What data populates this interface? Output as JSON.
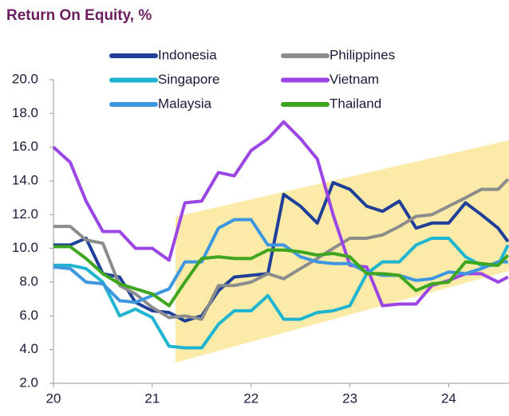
{
  "chart_data": {
    "type": "line",
    "title": "Return On Equity, %",
    "x": [
      20.0,
      20.17,
      20.33,
      20.5,
      20.67,
      20.83,
      21.0,
      21.17,
      21.33,
      21.5,
      21.67,
      21.83,
      22.0,
      22.17,
      22.33,
      22.5,
      22.67,
      22.83,
      23.0,
      23.17,
      23.33,
      23.5,
      23.67,
      23.83,
      24.0,
      24.17,
      24.33,
      24.5,
      24.6
    ],
    "series": [
      {
        "name": "Indonesia",
        "color": "#1f3f99",
        "values": [
          10.2,
          10.2,
          10.6,
          8.5,
          8.3,
          6.8,
          6.3,
          6.2,
          5.7,
          6.0,
          7.5,
          8.3,
          8.4,
          8.5,
          13.2,
          12.5,
          11.5,
          13.9,
          13.5,
          12.5,
          12.2,
          12.8,
          11.2,
          11.5,
          11.5,
          12.7,
          12.0,
          11.2,
          10.4
        ]
      },
      {
        "name": "Philippines",
        "color": "#8c8c8c",
        "values": [
          11.3,
          11.3,
          10.5,
          10.3,
          7.8,
          7.3,
          6.5,
          5.9,
          6.0,
          5.8,
          7.8,
          7.8,
          8.0,
          8.5,
          8.2,
          8.8,
          9.4,
          10.0,
          10.6,
          10.6,
          10.8,
          11.3,
          11.9,
          12.0,
          12.5,
          13.0,
          13.5,
          13.5,
          14.1
        ]
      },
      {
        "name": "Singapore",
        "color": "#1fb5d0",
        "values": [
          9.0,
          9.0,
          8.8,
          8.0,
          6.0,
          6.4,
          5.9,
          4.2,
          4.1,
          4.1,
          5.5,
          6.3,
          6.3,
          7.2,
          5.8,
          5.8,
          6.2,
          6.3,
          6.6,
          8.5,
          9.2,
          9.2,
          10.2,
          10.6,
          10.6,
          9.5,
          9.0,
          9.0,
          10.2
        ]
      },
      {
        "name": "Vietnam",
        "color": "#9b45e4",
        "values": [
          16.0,
          15.1,
          12.8,
          11.0,
          11.0,
          10.0,
          10.0,
          9.3,
          12.7,
          12.8,
          14.5,
          14.3,
          15.8,
          16.5,
          17.5,
          16.5,
          15.3,
          12.0,
          9.0,
          8.9,
          6.6,
          6.7,
          6.7,
          7.8,
          8.1,
          8.5,
          8.5,
          8.0,
          8.3
        ]
      },
      {
        "name": "Malaysia",
        "color": "#3d97e0",
        "values": [
          8.9,
          8.8,
          8.0,
          7.9,
          6.9,
          6.8,
          7.2,
          7.6,
          9.2,
          9.2,
          11.2,
          11.7,
          11.7,
          10.2,
          10.2,
          9.5,
          9.2,
          9.1,
          9.1,
          8.6,
          8.4,
          8.4,
          8.1,
          8.2,
          8.6,
          8.5,
          8.8,
          9.2,
          9.2
        ]
      },
      {
        "name": "Thailand",
        "color": "#3ea61e",
        "values": [
          10.1,
          10.1,
          9.4,
          8.5,
          7.9,
          7.6,
          7.3,
          6.6,
          8.0,
          9.4,
          9.5,
          9.4,
          9.4,
          9.9,
          9.9,
          9.8,
          9.6,
          9.7,
          9.5,
          8.5,
          8.5,
          8.4,
          7.5,
          7.9,
          8.0,
          9.2,
          9.1,
          9.0,
          9.6
        ]
      }
    ],
    "xlim": [
      20,
      24.61
    ],
    "xticks": [
      20,
      21,
      22,
      23,
      24
    ],
    "ylim": [
      2,
      20
    ],
    "yticks": [
      {
        "value": 2,
        "label": "2.0"
      },
      {
        "value": 4,
        "label": "4.0"
      },
      {
        "value": 6,
        "label": "6.0"
      },
      {
        "value": 8,
        "label": "8.0"
      },
      {
        "value": 10,
        "label": "10.0"
      },
      {
        "value": 12,
        "label": "12.0"
      },
      {
        "value": 14,
        "label": "14.0"
      },
      {
        "value": 16,
        "label": "16.0"
      },
      {
        "value": 18,
        "label": "18.0"
      },
      {
        "value": 20,
        "label": "20.0"
      }
    ],
    "grid": false
  }
}
